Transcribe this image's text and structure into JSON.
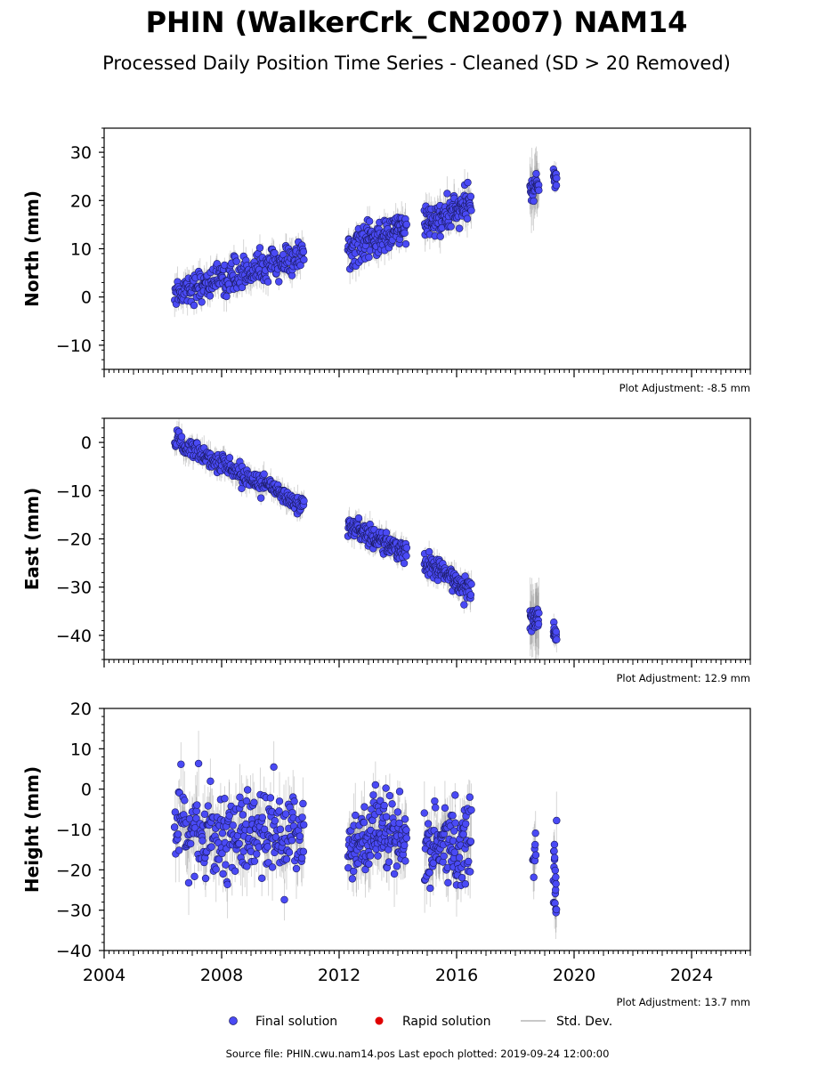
{
  "figure": {
    "title": "PHIN (WalkerCrk_CN2007) NAM14",
    "subtitle": "Processed Daily Position Time Series - Cleaned (SD > 20 Removed)",
    "source": "Source file: PHIN.cwu.nam14.pos  Last epoch plotted: 2019-09-24 12:00:00",
    "legend": [
      {
        "label": "Final solution",
        "color": "#4a4af5",
        "marker": "circle"
      },
      {
        "label": "Rapid solution",
        "color": "#e00000",
        "marker": "circle"
      },
      {
        "label": "Std. Dev.",
        "color": "#c8c8c8",
        "marker": "line"
      }
    ]
  },
  "chart_data": [
    {
      "type": "scatter",
      "ylabel": "North (mm)",
      "adjustment": "Plot Adjustment: -8.5 mm",
      "xlim": [
        2004,
        2026
      ],
      "ylim": [
        -15,
        35
      ],
      "yticks": [
        -10,
        0,
        10,
        20,
        30
      ],
      "yticklabels": [
        "−10",
        "0",
        "10",
        "20",
        "30"
      ],
      "show_xticklabels": false,
      "segments": [
        {
          "t0": 2006.4,
          "t1": 2010.8,
          "y0": 1.0,
          "y1": 8.5,
          "noise": 1.6,
          "sd": 2.5,
          "n": 260
        },
        {
          "t0": 2012.3,
          "t1": 2014.3,
          "y0": 9.5,
          "y1": 14.5,
          "noise": 1.8,
          "sd": 2.5,
          "n": 150
        },
        {
          "t0": 2014.9,
          "t1": 2016.5,
          "y0": 15.0,
          "y1": 19.0,
          "noise": 1.8,
          "sd": 2.8,
          "n": 120
        },
        {
          "t0": 2018.5,
          "t1": 2018.8,
          "y0": 22.0,
          "y1": 23.0,
          "noise": 1.5,
          "sd": 5.0,
          "n": 30
        },
        {
          "t0": 2019.3,
          "t1": 2019.4,
          "y0": 24.5,
          "y1": 25.0,
          "noise": 1.0,
          "sd": 2.0,
          "n": 15
        }
      ]
    },
    {
      "type": "scatter",
      "ylabel": "East (mm)",
      "adjustment": "Plot Adjustment: 12.9 mm",
      "xlim": [
        2004,
        2026
      ],
      "ylim": [
        -45,
        5
      ],
      "yticks": [
        -40,
        -30,
        -20,
        -10,
        0
      ],
      "yticklabels": [
        "−40",
        "−30",
        "−20",
        "−10",
        "0"
      ],
      "show_xticklabels": false,
      "segments": [
        {
          "t0": 2006.4,
          "t1": 2010.8,
          "y0": 0.5,
          "y1": -13.0,
          "noise": 1.1,
          "sd": 2.0,
          "n": 260
        },
        {
          "t0": 2012.3,
          "t1": 2014.3,
          "y0": -17.0,
          "y1": -23.0,
          "noise": 1.0,
          "sd": 2.0,
          "n": 150
        },
        {
          "t0": 2014.9,
          "t1": 2016.5,
          "y0": -25.0,
          "y1": -30.5,
          "noise": 1.2,
          "sd": 2.2,
          "n": 120
        },
        {
          "t0": 2018.5,
          "t1": 2018.8,
          "y0": -36.0,
          "y1": -37.0,
          "noise": 1.5,
          "sd": 6.0,
          "n": 30
        },
        {
          "t0": 2019.3,
          "t1": 2019.4,
          "y0": -39.0,
          "y1": -40.0,
          "noise": 0.8,
          "sd": 2.0,
          "n": 15
        }
      ]
    },
    {
      "type": "scatter",
      "ylabel": "Height (mm)",
      "adjustment": "Plot Adjustment: 13.7 mm",
      "xlim": [
        2004,
        2026
      ],
      "ylim": [
        -40,
        20
      ],
      "yticks": [
        -40,
        -30,
        -20,
        -10,
        0,
        10,
        20
      ],
      "yticklabels": [
        "−40",
        "−30",
        "−20",
        "−10",
        "0",
        "10",
        "20"
      ],
      "xticks": [
        2004,
        2008,
        2012,
        2016,
        2020,
        2024
      ],
      "xticklabels": [
        "2004",
        "2008",
        "2012",
        "2016",
        "2020",
        "2024"
      ],
      "show_xticklabels": true,
      "segments": [
        {
          "t0": 2006.4,
          "t1": 2010.8,
          "y0": -10.0,
          "y1": -12.0,
          "noise": 5.0,
          "sd": 6.0,
          "n": 260
        },
        {
          "t0": 2012.3,
          "t1": 2014.3,
          "y0": -13.0,
          "y1": -12.0,
          "noise": 5.0,
          "sd": 6.0,
          "n": 150
        },
        {
          "t0": 2014.9,
          "t1": 2016.5,
          "y0": -14.0,
          "y1": -14.0,
          "noise": 5.0,
          "sd": 6.0,
          "n": 120
        },
        {
          "t0": 2018.6,
          "t1": 2018.7,
          "y0": -16.0,
          "y1": -16.0,
          "noise": 3.5,
          "sd": 6.0,
          "n": 10
        },
        {
          "t0": 2019.3,
          "t1": 2019.4,
          "y0": -20.0,
          "y1": -22.0,
          "noise": 5.0,
          "sd": 6.0,
          "n": 20
        }
      ]
    }
  ]
}
